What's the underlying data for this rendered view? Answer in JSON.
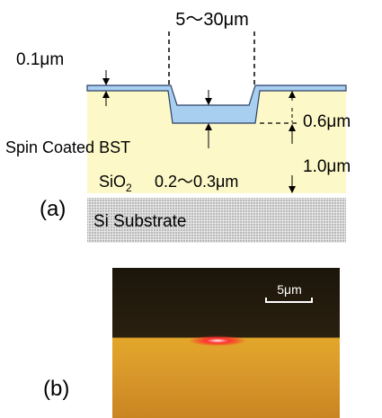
{
  "panel_a": {
    "label": "(a)",
    "trench_width": "5～30μm",
    "bst_top_thickness": "0.1μm",
    "trench_depth": "0.6μm",
    "oxide_thickness": "1.0μm",
    "bst_label": "Spin Coated BST",
    "sio2_label": "SiO",
    "sio2_subscript": "2",
    "bst_trench_thickness": "0.2～0.3μm",
    "substrate_label": "Si Substrate"
  },
  "panel_b": {
    "label": "(b)",
    "scale_bar": "5μm"
  }
}
